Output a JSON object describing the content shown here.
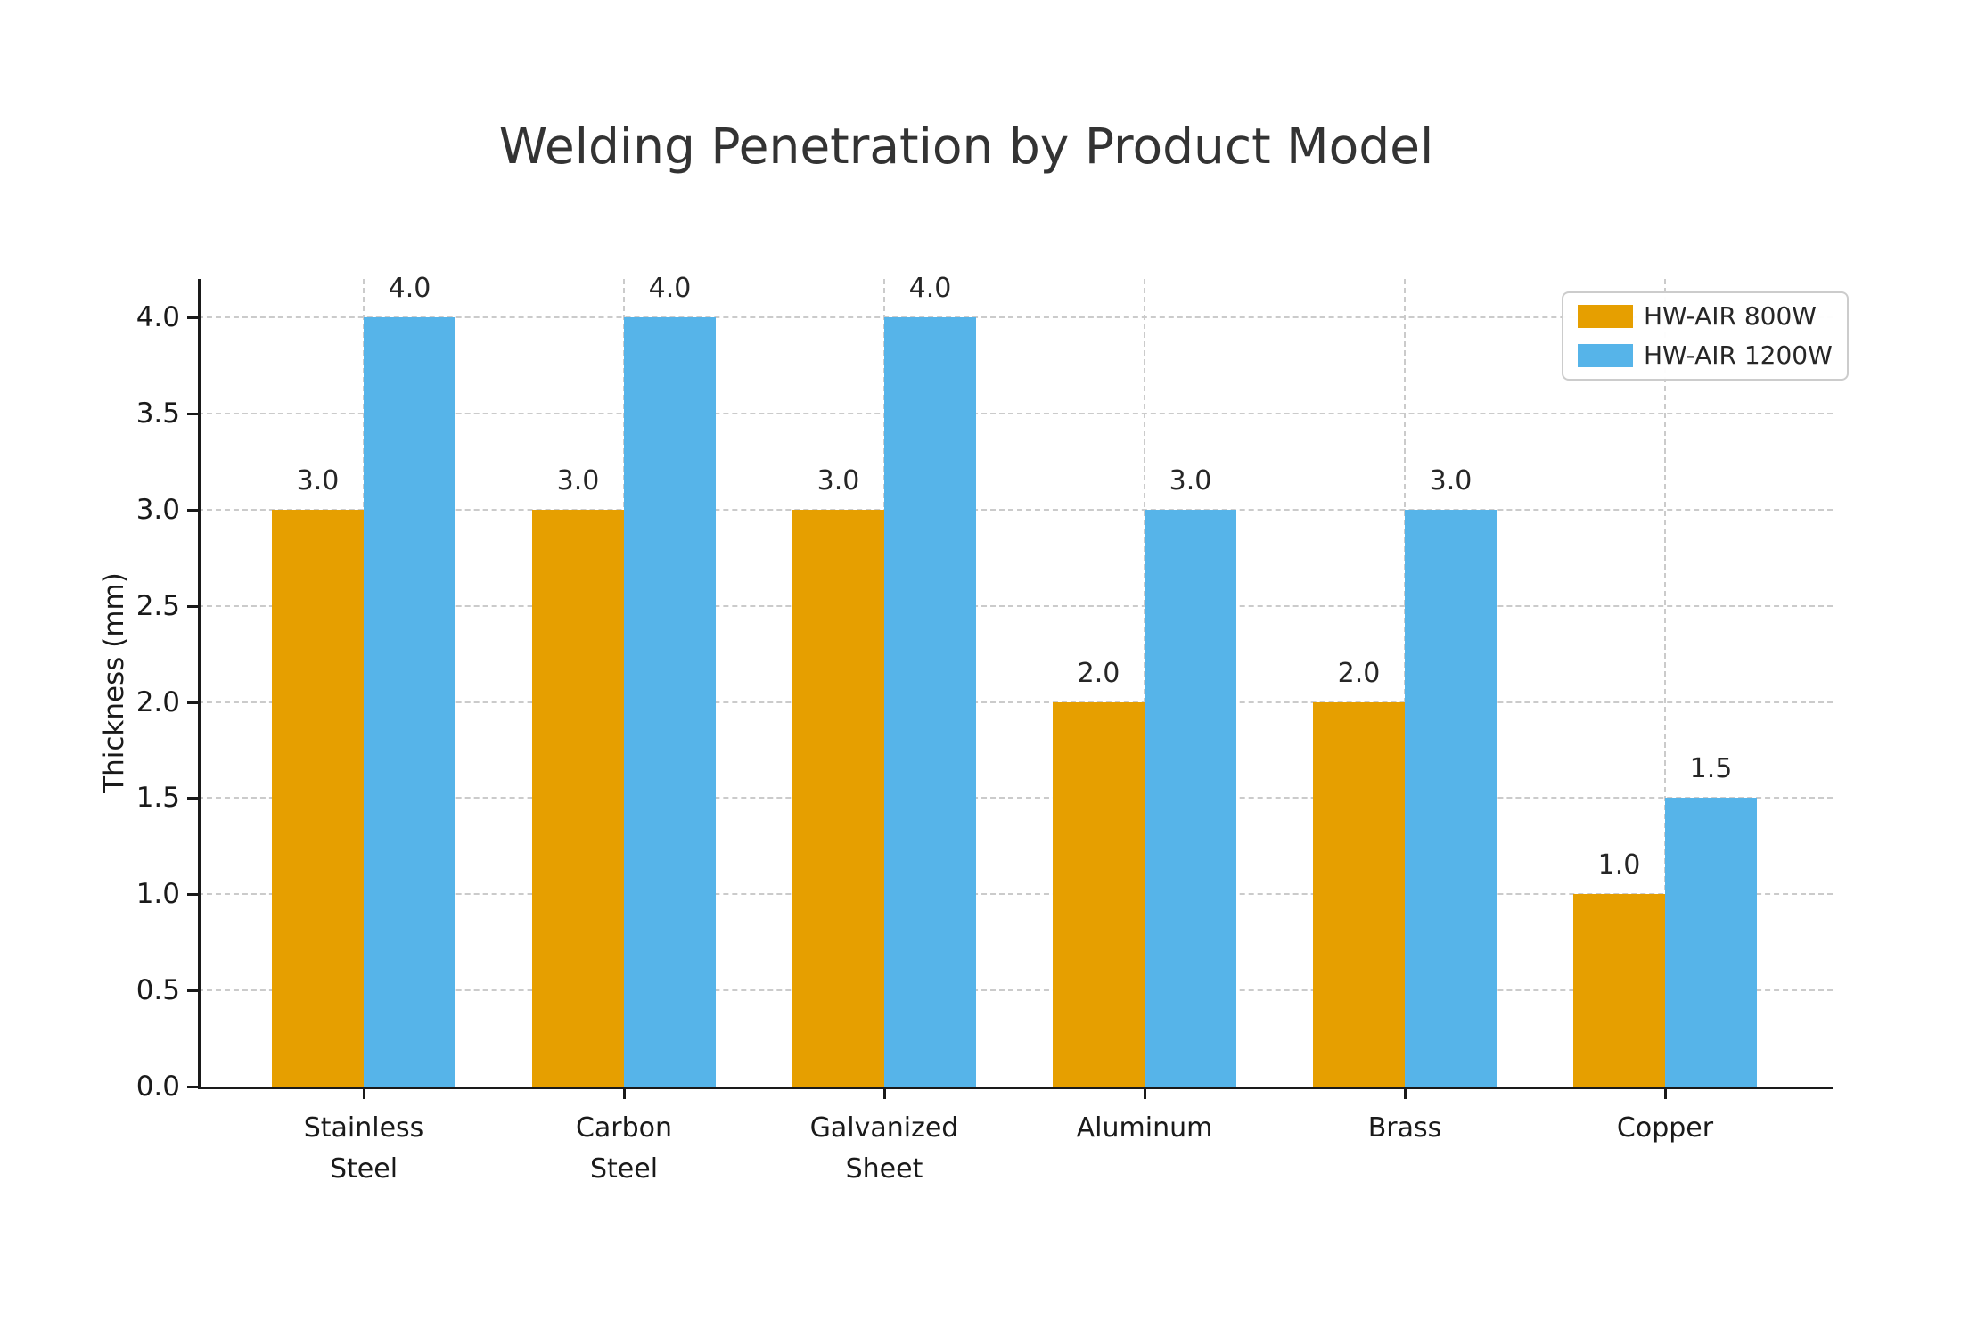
{
  "chart_data": {
    "type": "bar",
    "title": "Welding Penetration by Product Model",
    "ylabel": "Thickness (mm)",
    "xlabel": "",
    "categories": [
      "Stainless Steel",
      "Carbon Steel",
      "Galvanized Sheet",
      "Aluminum",
      "Brass",
      "Copper"
    ],
    "category_label_lines": [
      [
        "Stainless",
        "Steel"
      ],
      [
        "Carbon",
        "Steel"
      ],
      [
        "Galvanized",
        "Sheet"
      ],
      [
        "Aluminum"
      ],
      [
        "Brass"
      ],
      [
        "Copper"
      ]
    ],
    "series": [
      {
        "name": "HW-AIR 800W",
        "color": "#E69F00",
        "values": [
          3.0,
          3.0,
          3.0,
          2.0,
          2.0,
          1.0
        ],
        "value_labels": [
          "3.0",
          "3.0",
          "3.0",
          "2.0",
          "2.0",
          "1.0"
        ]
      },
      {
        "name": "HW-AIR 1200W",
        "color": "#56B4E9",
        "values": [
          4.0,
          4.0,
          4.0,
          3.0,
          3.0,
          1.5
        ],
        "value_labels": [
          "4.0",
          "4.0",
          "4.0",
          "3.0",
          "3.0",
          "1.5"
        ]
      }
    ],
    "ytick_labels": [
      "0.0",
      "0.5",
      "1.0",
      "1.5",
      "2.0",
      "2.5",
      "3.0",
      "3.5",
      "4.0"
    ],
    "ylim": [
      0,
      4.2
    ],
    "grid": {
      "style": "dashed",
      "horizontal": true,
      "vertical": true
    },
    "legend_position": "upper right"
  },
  "colors": {
    "background": "#ffffff",
    "title_text": "#333333",
    "axis_text": "#1a1a1a",
    "spine": "#1a1a1a",
    "grid": "#cbcbcb",
    "legend_border": "#cccccc"
  }
}
